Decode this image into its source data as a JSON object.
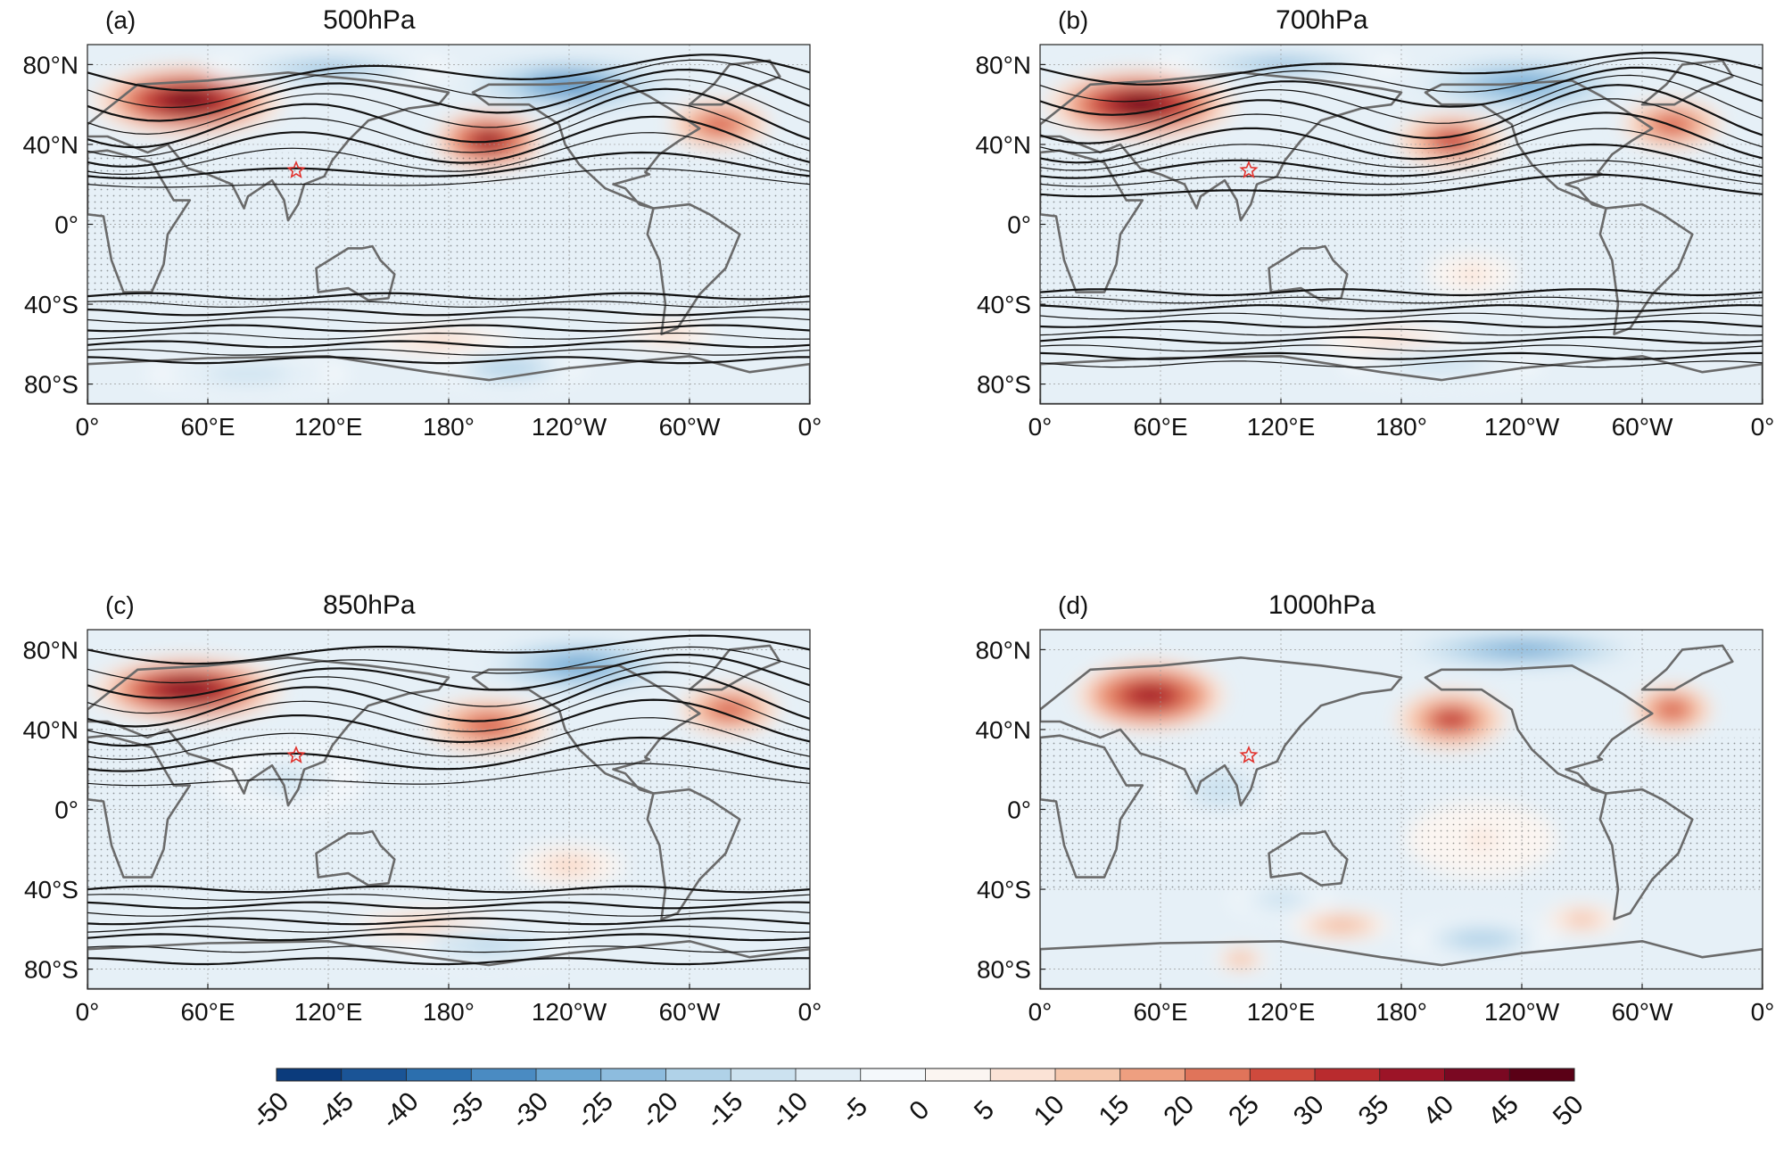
{
  "figure": {
    "colors": {
      "coast": "#6a6a6a",
      "contour": "#111111",
      "star": "#e2332e",
      "stipple": "#222222",
      "ocean_base": "#e6f0f7"
    },
    "colormap": [
      "#0b3b7c",
      "#1a5496",
      "#2c6fae",
      "#4a8bc2",
      "#6aa6d2",
      "#8dbcde",
      "#b0d2e8",
      "#cce2f0",
      "#e2eef6",
      "#f4f8fb",
      "#fbf5f1",
      "#fbe3d6",
      "#f6c8ae",
      "#ee9f80",
      "#e0745a",
      "#cf4a3d",
      "#b92b2e",
      "#9c1427",
      "#7a0822",
      "#5a0016"
    ]
  },
  "panels": [
    {
      "label": "(a)",
      "title": "500hPa",
      "ylabels": [
        "80°N",
        "40°N",
        "0°",
        "40°S",
        "80°S"
      ],
      "xlabels": [
        "0°",
        "60°E",
        "120°E",
        "180°",
        "120°W",
        "60°W",
        "0°"
      ],
      "anomalies": [
        {
          "lon": 50,
          "lat": 62,
          "value": 48,
          "rlon": 38,
          "rlat": 14
        },
        {
          "lon": 200,
          "lat": 42,
          "value": 40,
          "rlon": 22,
          "rlat": 12
        },
        {
          "lon": 315,
          "lat": 50,
          "value": 28,
          "rlon": 20,
          "rlat": 10
        },
        {
          "lon": 175,
          "lat": -58,
          "value": 12,
          "rlon": 30,
          "rlat": 6
        },
        {
          "lon": 290,
          "lat": -55,
          "value": 10,
          "rlon": 18,
          "rlat": 6
        },
        {
          "lon": 240,
          "lat": 70,
          "value": -32,
          "rlon": 45,
          "rlat": 12
        },
        {
          "lon": 120,
          "lat": 78,
          "value": -25,
          "rlon": 50,
          "rlat": 8
        },
        {
          "lon": 210,
          "lat": -72,
          "value": -20,
          "rlon": 30,
          "rlat": 8
        },
        {
          "lon": 80,
          "lat": -75,
          "value": -15,
          "rlon": 40,
          "rlat": 8
        }
      ]
    },
    {
      "label": "(b)",
      "title": "700hPa",
      "ylabels": [
        "80°N",
        "40°N",
        "0°",
        "40°S",
        "80°S"
      ],
      "xlabels": [
        "0°",
        "60°E",
        "120°E",
        "180°",
        "120°W",
        "60°W",
        "0°"
      ],
      "anomalies": [
        {
          "lon": 50,
          "lat": 60,
          "value": 46,
          "rlon": 38,
          "rlat": 14
        },
        {
          "lon": 205,
          "lat": 42,
          "value": 32,
          "rlon": 22,
          "rlat": 11
        },
        {
          "lon": 315,
          "lat": 50,
          "value": 28,
          "rlon": 20,
          "rlat": 10
        },
        {
          "lon": 215,
          "lat": -25,
          "value": 8,
          "rlon": 18,
          "rlat": 8
        },
        {
          "lon": 175,
          "lat": -58,
          "value": 12,
          "rlon": 30,
          "rlat": 6
        },
        {
          "lon": 240,
          "lat": 70,
          "value": -30,
          "rlon": 45,
          "rlat": 12
        },
        {
          "lon": 120,
          "lat": 80,
          "value": -22,
          "rlon": 50,
          "rlat": 8
        },
        {
          "lon": 200,
          "lat": -70,
          "value": -15,
          "rlon": 40,
          "rlat": 8
        }
      ]
    },
    {
      "label": "(c)",
      "title": "850hPa",
      "ylabels": [
        "80°N",
        "40°N",
        "0°",
        "40°S",
        "80°S"
      ],
      "xlabels": [
        "0°",
        "60°E",
        "120°E",
        "180°",
        "120°W",
        "60°W",
        "0°"
      ],
      "anomalies": [
        {
          "lon": 50,
          "lat": 60,
          "value": 44,
          "rlon": 38,
          "rlat": 13
        },
        {
          "lon": 200,
          "lat": 42,
          "value": 28,
          "rlon": 25,
          "rlat": 11
        },
        {
          "lon": 320,
          "lat": 50,
          "value": 26,
          "rlon": 20,
          "rlat": 10
        },
        {
          "lon": 240,
          "lat": -28,
          "value": 10,
          "rlon": 22,
          "rlat": 8
        },
        {
          "lon": 170,
          "lat": -58,
          "value": 14,
          "rlon": 30,
          "rlat": 6
        },
        {
          "lon": 245,
          "lat": 72,
          "value": -30,
          "rlon": 40,
          "rlat": 12
        },
        {
          "lon": 100,
          "lat": 15,
          "value": -12,
          "rlon": 30,
          "rlat": 15
        },
        {
          "lon": 200,
          "lat": -68,
          "value": -18,
          "rlon": 35,
          "rlat": 8
        }
      ]
    },
    {
      "label": "(d)",
      "title": "1000hPa",
      "ylabels": [
        "80°N",
        "40°N",
        "0°",
        "40°S",
        "80°S"
      ],
      "xlabels": [
        "0°",
        "60°E",
        "120°E",
        "180°",
        "120°W",
        "60°W",
        "0°"
      ],
      "anomalies": [
        {
          "lon": 55,
          "lat": 57,
          "value": 38,
          "rlon": 30,
          "rlat": 14
        },
        {
          "lon": 205,
          "lat": 45,
          "value": 32,
          "rlon": 22,
          "rlat": 12
        },
        {
          "lon": 315,
          "lat": 50,
          "value": 26,
          "rlon": 16,
          "rlat": 10
        },
        {
          "lon": 150,
          "lat": -58,
          "value": 18,
          "rlon": 20,
          "rlat": 6
        },
        {
          "lon": 270,
          "lat": -55,
          "value": 16,
          "rlon": 15,
          "rlat": 6
        },
        {
          "lon": 100,
          "lat": -75,
          "value": 18,
          "rlon": 10,
          "rlat": 5
        },
        {
          "lon": 220,
          "lat": -15,
          "value": 6,
          "rlon": 30,
          "rlat": 15
        },
        {
          "lon": 240,
          "lat": 80,
          "value": -28,
          "rlon": 50,
          "rlat": 8
        },
        {
          "lon": 220,
          "lat": -65,
          "value": -20,
          "rlon": 30,
          "rlat": 8
        },
        {
          "lon": 90,
          "lat": 10,
          "value": -14,
          "rlon": 25,
          "rlat": 15
        },
        {
          "lon": 120,
          "lat": -45,
          "value": -15,
          "rlon": 20,
          "rlat": 8
        }
      ]
    }
  ],
  "colorbar": {
    "ticks": [
      "-50",
      "-45",
      "-40",
      "-35",
      "-30",
      "-25",
      "-20",
      "-15",
      "-10",
      "-5",
      "0",
      "5",
      "10",
      "15",
      "20",
      "25",
      "30",
      "35",
      "40",
      "45",
      "50"
    ],
    "range": [
      -50,
      50
    ]
  },
  "chart_data": {
    "type": "heatmap",
    "title": "",
    "xlabel": "",
    "ylabel": "",
    "subplots": [
      "500hPa",
      "700hPa",
      "850hPa",
      "1000hPa"
    ],
    "x_ticks": [
      "0°",
      "60°E",
      "120°E",
      "180°",
      "120°W",
      "60°W",
      "0°"
    ],
    "y_ticks": [
      "80°N",
      "40°N",
      "0°",
      "40°S",
      "80°S"
    ],
    "color_range": [
      -50,
      50
    ],
    "marker": {
      "symbol": "star",
      "lon": 104,
      "lat": 27
    }
  }
}
